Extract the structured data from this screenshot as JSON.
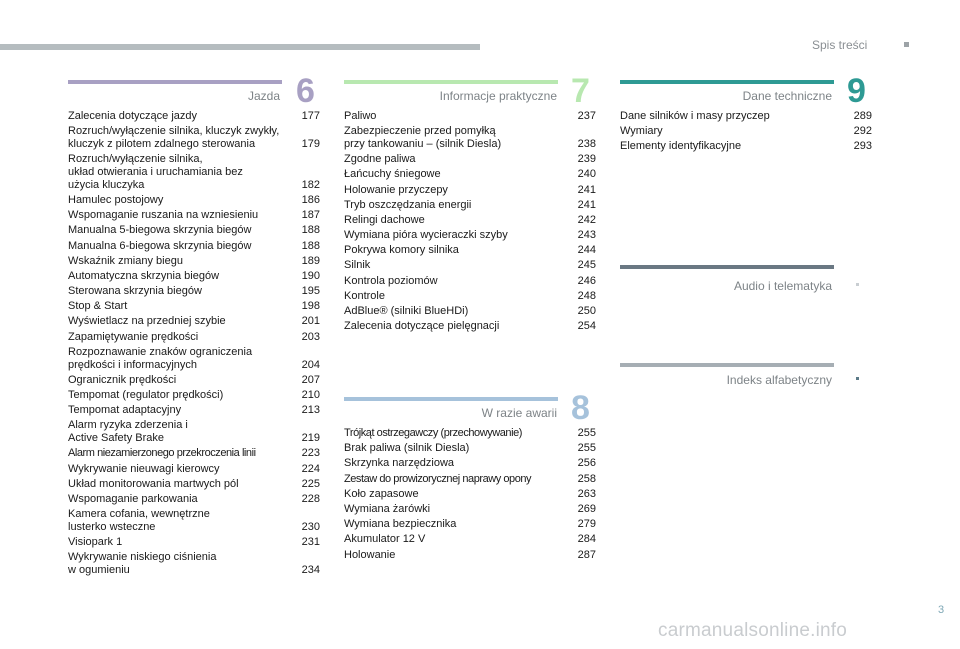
{
  "header": {
    "title": "Spis treści"
  },
  "colors": {
    "chapter6": "#a8a0c3",
    "chapter7": "#b8e8b0",
    "chapter8": "#a6c2db",
    "chapter9": "#2e9a94",
    "audio": "#6a7883",
    "index": "#a6aeb4",
    "gray_bar": "#b5bcbf"
  },
  "sections": {
    "jazda": {
      "title": "Jazda",
      "number": "6",
      "items": [
        {
          "text": "Zalecenia dotyczące jazdy",
          "page": "177"
        },
        {
          "text": "Rozruch/wyłączenie silnika, kluczyk zwykły,\nkluczyk z pilotem zdalnego sterowania",
          "page": "179"
        },
        {
          "text": "Rozruch/wyłączenie silnika,\nukład otwierania i uruchamiania bez\nużycia kluczyka",
          "page": "182"
        },
        {
          "text": "Hamulec postojowy",
          "page": "186"
        },
        {
          "text": "Wspomaganie ruszania na wzniesieniu",
          "page": "187"
        },
        {
          "text": "Manualna 5-biegowa skrzynia biegów",
          "page": "188"
        },
        {
          "text": "Manualna 6-biegowa skrzynia biegów",
          "page": "188"
        },
        {
          "text": "Wskaźnik zmiany biegu",
          "page": "189"
        },
        {
          "text": "Automatyczna skrzynia biegów",
          "page": "190"
        },
        {
          "text": "Sterowana skrzynia biegów",
          "page": "195"
        },
        {
          "text": "Stop & Start",
          "page": "198"
        },
        {
          "text": "Wyświetlacz na przedniej szybie",
          "page": "201"
        },
        {
          "text": "Zapamiętywanie prędkości",
          "page": "203"
        },
        {
          "text": "Rozpoznawanie znaków ograniczenia\nprędkości i informacyjnych",
          "page": "204"
        },
        {
          "text": "Ogranicznik prędkości",
          "page": "207"
        },
        {
          "text": "Tempomat (regulator prędkości)",
          "page": "210"
        },
        {
          "text": "Tempomat adaptacyjny",
          "page": "213"
        },
        {
          "text": "Alarm ryzyka zderzenia i\nActive Safety Brake",
          "page": "219"
        },
        {
          "text": "Alarm niezamierzonego przekroczenia linii",
          "page": "223"
        },
        {
          "text": "Wykrywanie nieuwagi kierowcy",
          "page": "224"
        },
        {
          "text": "Układ monitorowania martwych pól",
          "page": "225"
        },
        {
          "text": "Wspomaganie parkowania",
          "page": "228"
        },
        {
          "text": "Kamera cofania, wewnętrzne\nlusterko wsteczne",
          "page": "230"
        },
        {
          "text": "Visiopark 1",
          "page": "231"
        },
        {
          "text": "Wykrywanie niskiego ciśnienia\nw ogumieniu",
          "page": "234"
        }
      ]
    },
    "informacje": {
      "title": "Informacje praktyczne",
      "number": "7",
      "items": [
        {
          "text": "Paliwo",
          "page": "237"
        },
        {
          "text": "Zabezpieczenie przed pomyłką\nprzy tankowaniu – (silnik Diesla)",
          "page": "238"
        },
        {
          "text": "Zgodne paliwa",
          "page": "239"
        },
        {
          "text": "Łańcuchy śniegowe",
          "page": "240"
        },
        {
          "text": "Holowanie przyczepy",
          "page": "241"
        },
        {
          "text": "Tryb oszczędzania energii",
          "page": "241"
        },
        {
          "text": "Relingi dachowe",
          "page": "242"
        },
        {
          "text": "Wymiana pióra wycieraczki szyby",
          "page": "243"
        },
        {
          "text": "Pokrywa komory silnika",
          "page": "244"
        },
        {
          "text": "Silnik",
          "page": "245"
        },
        {
          "text": "Kontrola poziomów",
          "page": "246"
        },
        {
          "text": "Kontrole",
          "page": "248"
        },
        {
          "text": "AdBlue® (silniki BlueHDi)",
          "page": "250"
        },
        {
          "text": "Zalecenia dotyczące pielęgnacji",
          "page": "254"
        }
      ]
    },
    "awaria": {
      "title": "W razie awarii",
      "number": "8",
      "items": [
        {
          "text": "Trójkąt ostrzegawczy (przechowywanie)",
          "page": "255"
        },
        {
          "text": "Brak paliwa (silnik Diesla)",
          "page": "255"
        },
        {
          "text": "Skrzynka narzędziowa",
          "page": "256"
        },
        {
          "text": "Zestaw do prowizorycznej naprawy opony",
          "page": "258"
        },
        {
          "text": "Koło zapasowe",
          "page": "263"
        },
        {
          "text": "Wymiana żarówki",
          "page": "269"
        },
        {
          "text": "Wymiana bezpiecznika",
          "page": "279"
        },
        {
          "text": "Akumulator 12 V",
          "page": "284"
        },
        {
          "text": "Holowanie",
          "page": "287"
        }
      ]
    },
    "dane": {
      "title": "Dane techniczne",
      "number": "9",
      "items": [
        {
          "text": "Dane silników i masy przyczep",
          "page": "289"
        },
        {
          "text": "Wymiary",
          "page": "292"
        },
        {
          "text": "Elementy identyfikacyjne",
          "page": "293"
        }
      ]
    },
    "audio": {
      "title": "Audio i telematyka"
    },
    "indeks": {
      "title": "Indeks alfabetyczny"
    }
  },
  "footer": {
    "page_number": "3",
    "watermark": "carmanualsonline.info"
  }
}
